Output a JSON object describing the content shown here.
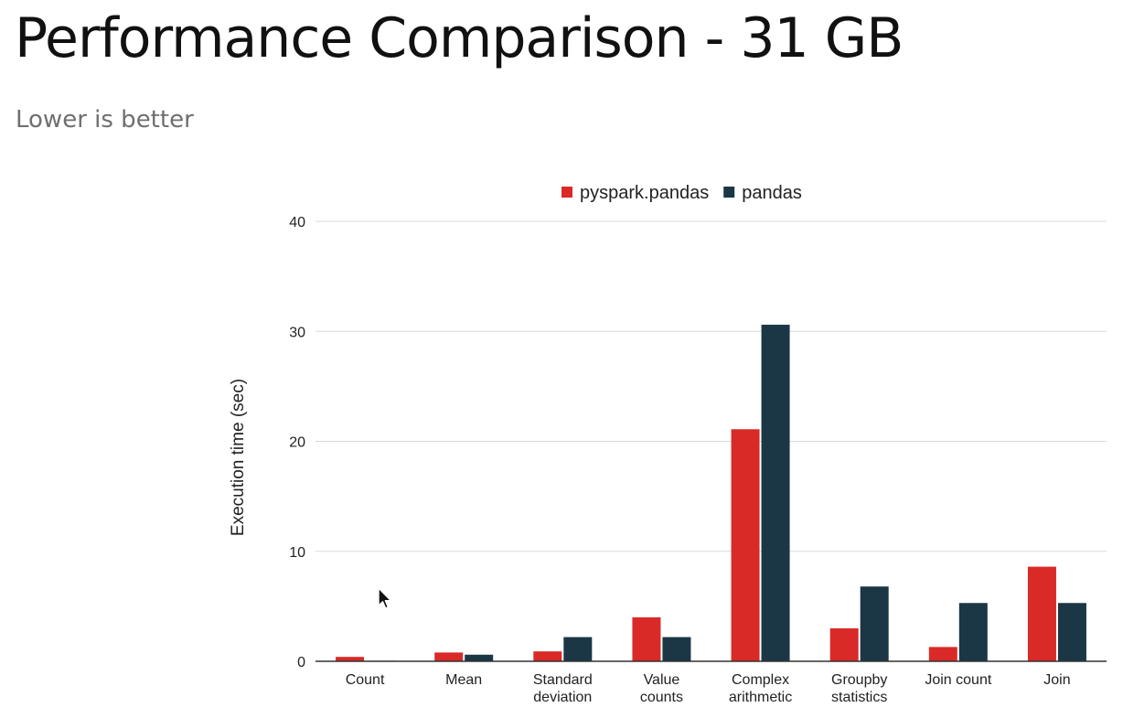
{
  "slide": {
    "title": "Performance Comparison - 31 GB",
    "subtitle": "Lower is better"
  },
  "colors": {
    "pyspark_pandas": "#d92a28",
    "pandas": "#1b3746",
    "grid": "#d9d9d9",
    "axis": "#333333",
    "text": "#222222"
  },
  "chart_data": {
    "type": "bar",
    "title": "",
    "xlabel": "",
    "ylabel": "Execution time (sec)",
    "ylim": [
      0,
      40
    ],
    "yticks": [
      0,
      10,
      20,
      30,
      40
    ],
    "grid": true,
    "legend_position": "top",
    "categories": [
      [
        "Count"
      ],
      [
        "Mean"
      ],
      [
        "Standard",
        "deviation"
      ],
      [
        "Value",
        "counts"
      ],
      [
        "Complex",
        "arithmetic"
      ],
      [
        "Groupby",
        "statistics"
      ],
      [
        "Join count"
      ],
      [
        "Join"
      ]
    ],
    "series": [
      {
        "name": "pyspark.pandas",
        "color": "#d92a28",
        "values": [
          0.4,
          0.8,
          0.9,
          4.0,
          21.1,
          3.0,
          1.3,
          8.6
        ]
      },
      {
        "name": "pandas",
        "color": "#1b3746",
        "values": [
          0.05,
          0.6,
          2.2,
          2.2,
          30.6,
          6.8,
          5.3,
          5.3
        ]
      }
    ]
  }
}
